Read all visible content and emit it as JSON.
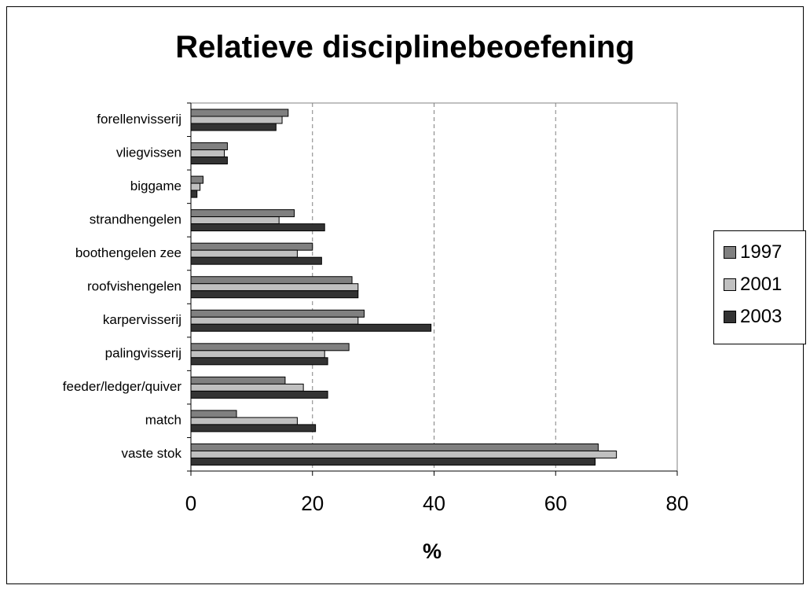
{
  "chart_data": {
    "type": "bar",
    "orientation": "horizontal",
    "title": "Relatieve disciplinebeoefening",
    "xlabel": "%",
    "ylabel": "",
    "xlim": [
      0,
      80
    ],
    "xticks": [
      0,
      20,
      40,
      60,
      80
    ],
    "grid": "vertical dashed",
    "legend_position": "right",
    "categories": [
      "forellenvisserij",
      "vliegvissen",
      "biggame",
      "strandhengelen",
      "boothengelen zee",
      "roofvishengelen",
      "karpervisserij",
      "palingvisserij",
      "feeder/ledger/quiver",
      "match",
      "vaste stok"
    ],
    "series": [
      {
        "name": "1997",
        "color": "#808080",
        "values": [
          16,
          6,
          2,
          17,
          20,
          26.5,
          28.5,
          26,
          15.5,
          7.5,
          67
        ]
      },
      {
        "name": "2001",
        "color": "#c0c0c0",
        "values": [
          15,
          5.5,
          1.5,
          14.5,
          17.5,
          27.5,
          27.5,
          22,
          18.5,
          17.5,
          70
        ]
      },
      {
        "name": "2003",
        "color": "#333333",
        "values": [
          14,
          6,
          1,
          22,
          21.5,
          27.5,
          39.5,
          22.5,
          22.5,
          20.5,
          66.5
        ]
      }
    ]
  }
}
